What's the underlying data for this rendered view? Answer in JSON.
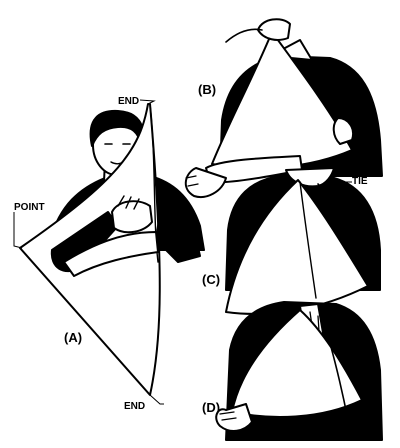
{
  "labels": {
    "end_top": "END",
    "point": "POINT",
    "end_bottom": "END",
    "tie": "TIE",
    "panel_a": "(A)",
    "panel_b": "(B)",
    "panel_c": "(C)",
    "panel_d": "(D)"
  },
  "colors": {
    "ink": "#000000",
    "paper": "#ffffff"
  }
}
